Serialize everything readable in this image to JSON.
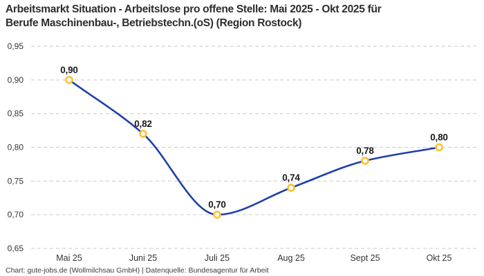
{
  "title": {
    "lines": [
      "Arbeitsmarkt Situation - Arbeitslose pro offene Stelle: Mai 2025 - Okt 2025 für",
      "Berufe Maschinenbau-, Betriebstechn.(oS) (Region Rostock)"
    ]
  },
  "footer": {
    "text": "Chart: gute-jobs.de (Wollmilchsau GmbH) | Datenquelle: Bundesagentur für Arbeit"
  },
  "chart_data": {
    "type": "line",
    "title": "Arbeitsmarkt Situation - Arbeitslose pro offene Stelle: Mai 2025 - Okt 2025 für Berufe Maschinenbau-, Betriebstechn.(oS) (Region Rostock)",
    "categories": [
      "Mai 25",
      "Juni 25",
      "Juli 25",
      "Aug 25",
      "Sept 25",
      "Okt 25"
    ],
    "series": [
      {
        "name": "Arbeitslose pro offene Stelle",
        "values": [
          0.9,
          0.82,
          0.7,
          0.74,
          0.78,
          0.8
        ]
      }
    ],
    "point_labels": [
      "0,90",
      "0,82",
      "0,70",
      "0,74",
      "0,78",
      "0,80"
    ],
    "y_ticks": [
      0.65,
      0.7,
      0.75,
      0.8,
      0.85,
      0.9,
      0.95
    ],
    "y_tick_labels": [
      "0,65",
      "0,70",
      "0,75",
      "0,80",
      "0,85",
      "0,90",
      "0,95"
    ],
    "ylim": [
      0.65,
      0.95
    ],
    "xlabel": "",
    "ylabel": "",
    "grid": "dashed-horizontal",
    "legend": "none",
    "curve": "monotone",
    "colors": {
      "line": "#1d3faa",
      "marker_stroke": "#ffc12e",
      "marker_fill": "#ffffff",
      "grid": "#c9c9c9",
      "title_text": "#2d2d2d",
      "axis_text": "#333333",
      "label_text": "#1a1a1a",
      "footer_text": "#3c3c3c",
      "background": "#ffffff"
    }
  }
}
